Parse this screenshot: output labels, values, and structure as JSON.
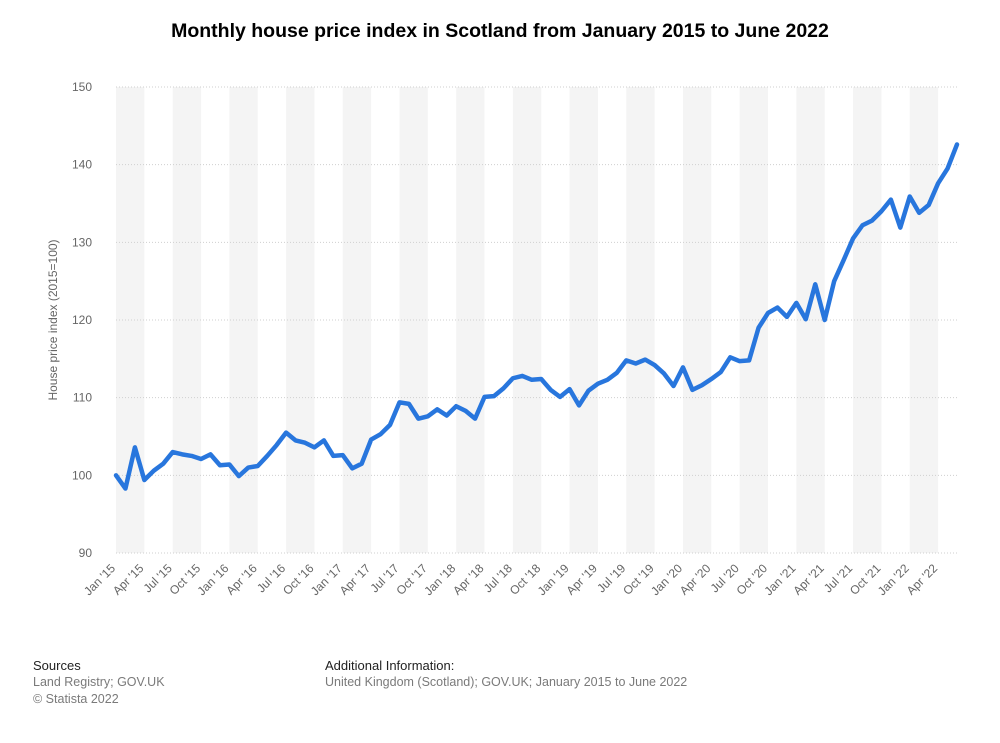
{
  "chart_data": {
    "type": "line",
    "title": "Monthly house price index in Scotland from January 2015 to June 2022",
    "xlabel": "",
    "ylabel": "House price index (2015=100)",
    "ylim": [
      90,
      150
    ],
    "yticks": [
      90,
      100,
      110,
      120,
      130,
      140,
      150
    ],
    "grid": true,
    "tick_labels": [
      "Jan '15",
      "Apr '15",
      "Jul '15",
      "Oct '15",
      "Jan '16",
      "Apr '16",
      "Jul '16",
      "Oct '16",
      "Jan '17",
      "Apr '17",
      "Jul '17",
      "Oct '17",
      "Jan '18",
      "Apr '18",
      "Jul '18",
      "Oct '18",
      "Jan '19",
      "Apr '19",
      "Jul '19",
      "Oct '19",
      "Jan '20",
      "Apr '20",
      "Jul '20",
      "Oct '20",
      "Jan '21",
      "Apr '21",
      "Jul '21",
      "Oct '21",
      "Jan '22",
      "Apr '22"
    ],
    "x": [
      "2015-01",
      "2015-02",
      "2015-03",
      "2015-04",
      "2015-05",
      "2015-06",
      "2015-07",
      "2015-08",
      "2015-09",
      "2015-10",
      "2015-11",
      "2015-12",
      "2016-01",
      "2016-02",
      "2016-03",
      "2016-04",
      "2016-05",
      "2016-06",
      "2016-07",
      "2016-08",
      "2016-09",
      "2016-10",
      "2016-11",
      "2016-12",
      "2017-01",
      "2017-02",
      "2017-03",
      "2017-04",
      "2017-05",
      "2017-06",
      "2017-07",
      "2017-08",
      "2017-09",
      "2017-10",
      "2017-11",
      "2017-12",
      "2018-01",
      "2018-02",
      "2018-03",
      "2018-04",
      "2018-05",
      "2018-06",
      "2018-07",
      "2018-08",
      "2018-09",
      "2018-10",
      "2018-11",
      "2018-12",
      "2019-01",
      "2019-02",
      "2019-03",
      "2019-04",
      "2019-05",
      "2019-06",
      "2019-07",
      "2019-08",
      "2019-09",
      "2019-10",
      "2019-11",
      "2019-12",
      "2020-01",
      "2020-02",
      "2020-03",
      "2020-04",
      "2020-05",
      "2020-06",
      "2020-07",
      "2020-08",
      "2020-09",
      "2020-10",
      "2020-11",
      "2020-12",
      "2021-01",
      "2021-02",
      "2021-03",
      "2021-04",
      "2021-05",
      "2021-06",
      "2021-07",
      "2021-08",
      "2021-09",
      "2021-10",
      "2021-11",
      "2021-12",
      "2022-01",
      "2022-02",
      "2022-03",
      "2022-04",
      "2022-05",
      "2022-06"
    ],
    "series": [
      {
        "name": "",
        "color": "#2876dd",
        "values": [
          100.0,
          98.3,
          103.6,
          99.4,
          100.6,
          101.5,
          103.0,
          102.7,
          102.5,
          102.1,
          102.7,
          101.3,
          101.4,
          99.9,
          101.0,
          101.2,
          102.5,
          103.9,
          105.5,
          104.5,
          104.2,
          103.6,
          104.5,
          102.5,
          102.6,
          100.9,
          101.5,
          104.6,
          105.3,
          106.5,
          109.4,
          109.2,
          107.3,
          107.6,
          108.5,
          107.7,
          108.9,
          108.3,
          107.3,
          110.1,
          110.2,
          111.2,
          112.5,
          112.8,
          112.3,
          112.4,
          111.0,
          110.1,
          111.1,
          109.0,
          110.9,
          111.8,
          112.3,
          113.2,
          114.8,
          114.4,
          114.9,
          114.2,
          113.1,
          111.5,
          113.9,
          111.0,
          111.6,
          112.4,
          113.3,
          115.2,
          114.7,
          114.8,
          119.0,
          120.9,
          121.6,
          120.4,
          122.2,
          120.1,
          124.6,
          120.0,
          125.0,
          127.7,
          130.5,
          132.2,
          132.8,
          134.0,
          135.5,
          131.9,
          135.9,
          133.8,
          134.8,
          137.6,
          139.5,
          142.6
        ]
      }
    ]
  },
  "footer": {
    "sources_heading": "Sources",
    "sources_line1": "Land Registry; GOV.UK",
    "sources_line2": "© Statista 2022",
    "additional_heading": "Additional Information:",
    "additional_line1": "United Kingdom (Scotland); GOV.UK; January 2015 to June 2022"
  }
}
